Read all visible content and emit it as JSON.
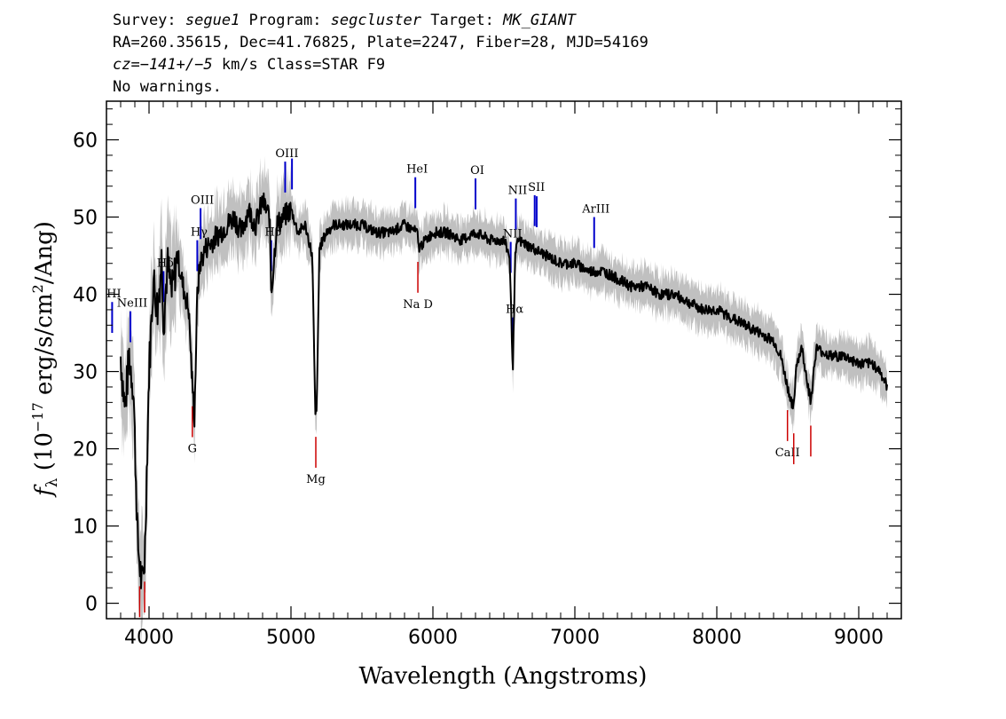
{
  "header": {
    "line1": {
      "survey_label": "Survey: ",
      "survey": "segue1",
      "program_label": " Program: ",
      "program": "segcluster",
      "target_label": " Target: ",
      "target": "MK_GIANT"
    },
    "line2": "RA=260.35615, Dec=41.76825, Plate=2247, Fiber=28, MJD=54169",
    "line3": {
      "cz": "cz=−141+/−5",
      "rest": " km/s Class=STAR F9"
    },
    "line4": "No warnings."
  },
  "chart_data": {
    "type": "line",
    "xlabel": "Wavelength (Angstroms)",
    "ylabel": "f_λ (10^-17 erg/s/cm^2/Ang)",
    "xlim": [
      3700,
      9300
    ],
    "ylim": [
      -2,
      65
    ],
    "x_ticks": [
      4000,
      5000,
      6000,
      7000,
      8000,
      9000
    ],
    "y_ticks": [
      0,
      10,
      20,
      30,
      40,
      50,
      60
    ],
    "colors": {
      "flux": "#000000",
      "error": "#c0c0c0",
      "emission": "#0000cc",
      "absorption": "#cc0000"
    },
    "series": [
      {
        "kind": "flux",
        "x": [
          3800,
          3830,
          3860,
          3890,
          3920,
          3950,
          3970,
          4000,
          4030,
          4060,
          4090,
          4102,
          4130,
          4160,
          4200,
          4240,
          4280,
          4300,
          4320,
          4340,
          4360,
          4400,
          4450,
          4500,
          4550,
          4600,
          4650,
          4700,
          4750,
          4800,
          4850,
          4861,
          4900,
          4950,
          5000,
          5050,
          5100,
          5150,
          5172,
          5183,
          5200,
          5250,
          5300,
          5400,
          5500,
          5600,
          5700,
          5800,
          5890,
          5900,
          6000,
          6100,
          6200,
          6300,
          6400,
          6500,
          6540,
          6563,
          6580,
          6600,
          6700,
          6800,
          6900,
          7000,
          7100,
          7200,
          7300,
          7400,
          7500,
          7600,
          7700,
          7800,
          7900,
          8000,
          8100,
          8200,
          8300,
          8400,
          8450,
          8498,
          8542,
          8560,
          8600,
          8662,
          8700,
          8800,
          8900,
          9000,
          9100,
          9150,
          9200
        ],
        "y": [
          32,
          25,
          32,
          28,
          8,
          2,
          6,
          30,
          42,
          38,
          45,
          36,
          44,
          40,
          45,
          41,
          38,
          30,
          24,
          40,
          44,
          46,
          47,
          48,
          49,
          50,
          48,
          51,
          49,
          52,
          50,
          40,
          49,
          50,
          51,
          48,
          49,
          45,
          24,
          26,
          46,
          48,
          49,
          49,
          49,
          48,
          48,
          49,
          48,
          46,
          48,
          48,
          47,
          48,
          47,
          47,
          45,
          30,
          45,
          47,
          46,
          45,
          44,
          44,
          43,
          43,
          42,
          41,
          41,
          40,
          40,
          39,
          38,
          38,
          37,
          36,
          35,
          34,
          32,
          28,
          25,
          31,
          33,
          26,
          33,
          32,
          32,
          31,
          31,
          30,
          28
        ]
      }
    ],
    "emission_lines": [
      {
        "label": "HI",
        "wavelength": 3740
      },
      {
        "label": "NeIII",
        "wavelength": 3869
      },
      {
        "label": "Hδ",
        "wavelength": 4102
      },
      {
        "label": "Hγ",
        "wavelength": 4340
      },
      {
        "label": "OIII",
        "wavelength": 4363
      },
      {
        "label": "Hβ",
        "wavelength": 4861
      },
      {
        "label": "OIII",
        "wavelength": 4959
      },
      {
        "label": "",
        "wavelength": 5007
      },
      {
        "label": "HeI",
        "wavelength": 5876
      },
      {
        "label": "OI",
        "wavelength": 6300
      },
      {
        "label": "NII",
        "wavelength": 6548
      },
      {
        "label": "Hα",
        "wavelength": 6563
      },
      {
        "label": "NII",
        "wavelength": 6584
      },
      {
        "label": "SII",
        "wavelength": 6717
      },
      {
        "label": "",
        "wavelength": 6731
      },
      {
        "label": "ArIII",
        "wavelength": 7136
      }
    ],
    "absorption_lines": [
      {
        "label": "",
        "wavelength": 3934
      },
      {
        "label": "",
        "wavelength": 3969
      },
      {
        "label": "G",
        "wavelength": 4305
      },
      {
        "label": "Mg",
        "wavelength": 5175
      },
      {
        "label": "Na D",
        "wavelength": 5894
      },
      {
        "label": "CaII",
        "wavelength": 8498
      },
      {
        "label": "",
        "wavelength": 8542
      },
      {
        "label": "",
        "wavelength": 8662
      }
    ]
  }
}
